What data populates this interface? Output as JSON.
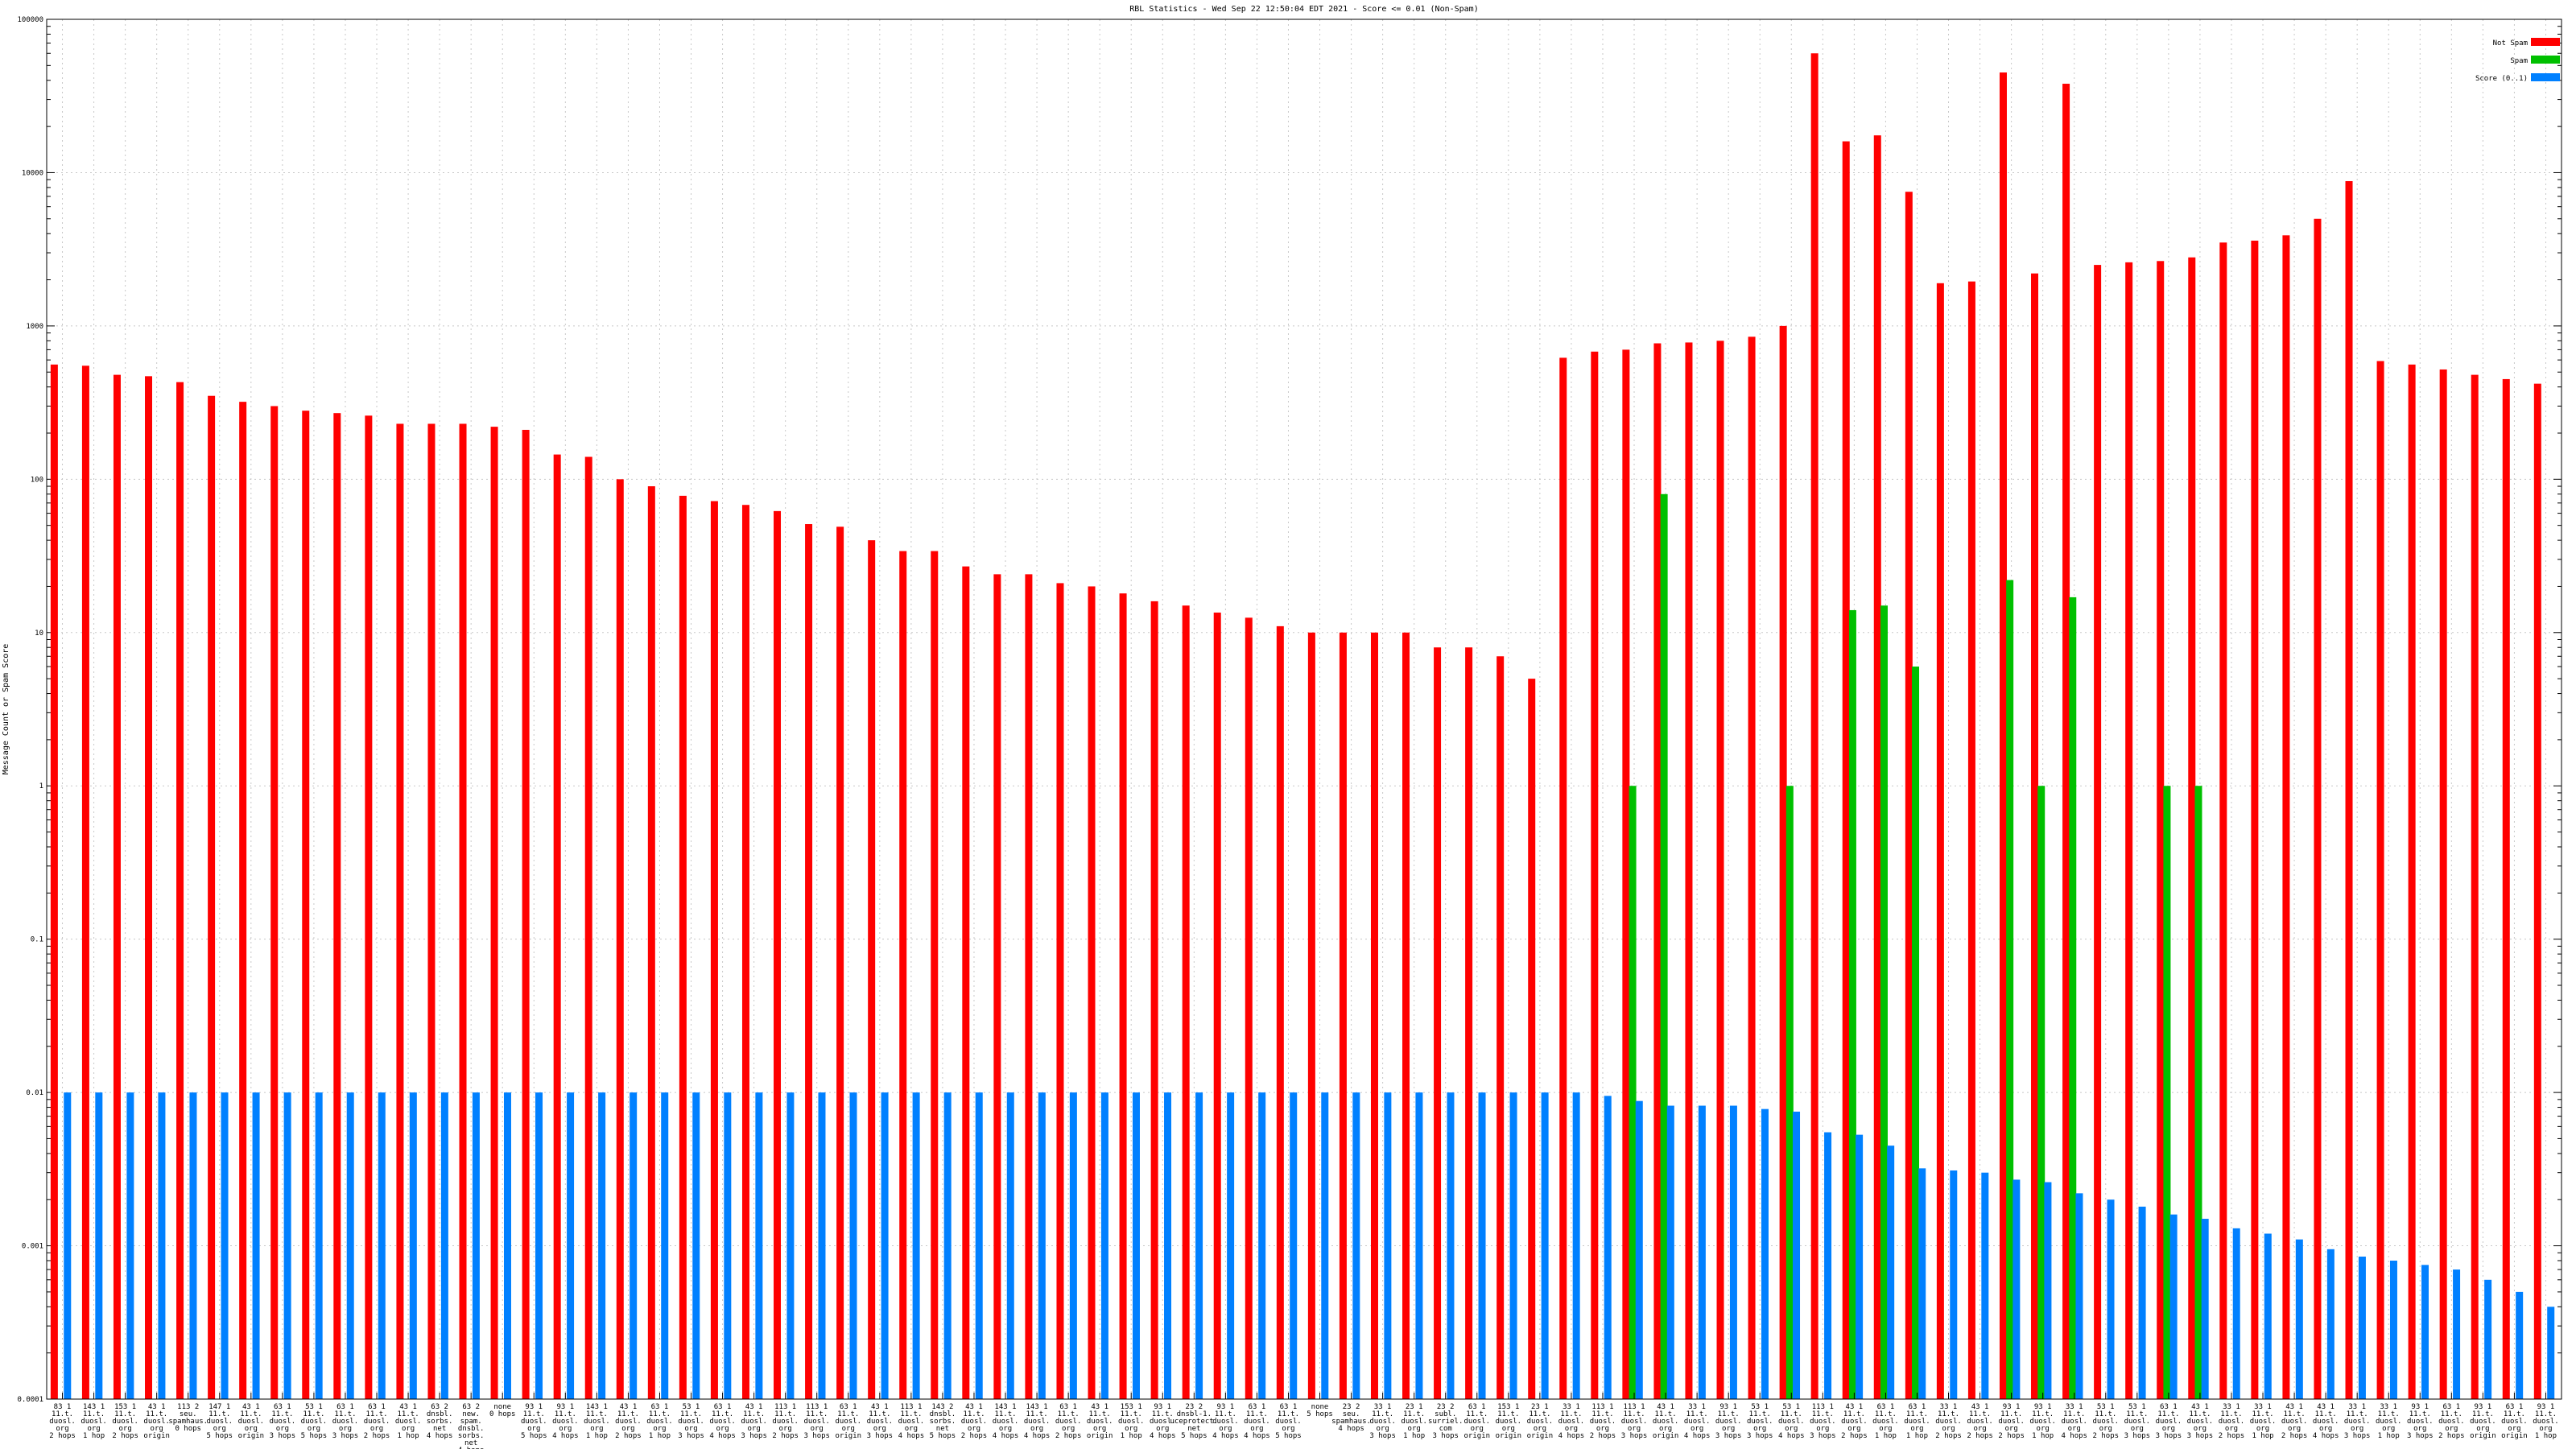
{
  "chart_data": {
    "type": "bar",
    "title": "RBL Statistics - Wed Sep 22 12:50:04 EDT 2021 - Score <= 0.01 (Non-Spam)",
    "xlabel": "",
    "ylabel": "Message Count or Spam Score",
    "yscale": "log",
    "ylim": [
      0.0001,
      100000
    ],
    "yticks": [
      {
        "value": 0.0001,
        "label": "0.0001"
      },
      {
        "value": 0.001,
        "label": "0.001"
      },
      {
        "value": 0.01,
        "label": "0.01"
      },
      {
        "value": 0.1,
        "label": "0.1"
      },
      {
        "value": 1,
        "label": "1"
      },
      {
        "value": 10,
        "label": "10"
      },
      {
        "value": 100,
        "label": "100"
      },
      {
        "value": 1000,
        "label": "1000"
      },
      {
        "value": 10000,
        "label": "10000"
      },
      {
        "value": 100000,
        "label": "100000"
      }
    ],
    "grid": true,
    "legend_position": "top-right",
    "categories": [
      "83 1\n11.t.\nduosl.\norg\n2 hops",
      "143 1\n11.t.\nduosl.\norg\n1 hop",
      "153 1\n11.t.\nduosl.\norg\n2 hops",
      "43 1\n11.t.\nduosl.\norg\norigin",
      "113 2\nseu.\nspamhaus.\n0 hops",
      "147 1\n11.t.\nduosl.\norg\n5 hops",
      "43 1\n11.t.\nduosl.\norg\norigin",
      "63 1\n11.t.\nduosl.\norg\n3 hops",
      "53 1\n11.t.\nduosl.\norg\n5 hops",
      "63 1\n11.t.\nduosl.\norg\n3 hops",
      "63 1\n11.t.\nduosl.\norg\n2 hops",
      "43 1\n11.t.\nduosl.\norg\n1 hop",
      "63 2\ndnsbl.\nsorbs.\nnet\n4 hops",
      "63 2\nnew.\nspam.\ndnsbl.\nsorbs.\nnet\n4 hops",
      "none\n0 hops",
      "93 1\n11.t.\nduosl.\norg\n5 hops",
      "93 1\n11.t.\nduosl.\norg\n4 hops",
      "143 1\n11.t.\nduosl.\norg\n1 hop",
      "43 1\n11.t.\nduosl.\norg\n2 hops",
      "63 1\n11.t.\nduosl.\norg\n1 hop",
      "53 1\n11.t.\nduosl.\norg\n3 hops",
      "63 1\n11.t.\nduosl.\norg\n4 hops",
      "43 1\n11.t.\nduosl.\norg\n3 hops",
      "113 1\n11.t.\nduosl.\norg\n2 hops",
      "113 1\n11.t.\nduosl.\norg\n3 hops",
      "63 1\n11.t.\nduosl.\norg\norigin",
      "43 1\n11.t.\nduosl.\norg\n3 hops",
      "113 1\n11.t.\nduosl.\norg\n4 hops",
      "143 2\ndnsbl.\nsorbs.\nnet\n5 hops",
      "43 1\n11.t.\nduosl.\norg\n2 hops",
      "143 1\n11.t.\nduosl.\norg\n4 hops",
      "143 1\n11.t.\nduosl.\norg\n4 hops",
      "63 1\n11.t.\nduosl.\norg\n2 hops",
      "43 1\n11.t.\nduosl.\norg\norigin",
      "153 1\n11.t.\nduosl.\norg\n1 hop",
      "93 1\n11.t.\nduosl.\norg\n4 hops",
      "23 2\ndnsbl-1.\nuceprotect.\nnet\n5 hops",
      "93 1\n11.t.\nduosl.\norg\n4 hops",
      "63 1\n11.t.\nduosl.\norg\n4 hops",
      "63 1\n11.t.\nduosl.\norg\n5 hops",
      "none\n5 hops",
      "23 2\nseu.\nspamhaus.\n4 hops",
      "33 1\n11.t.\nduosl.\norg\n3 hops",
      "23 1\n11.t.\nduosl.\norg\n1 hop",
      "23 2\nsubl.\nsurriel.\ncom\n3 hops",
      "63 1\n11.t.\nduosl.\norg\norigin",
      "153 1\n11.t.\nduosl.\norg\norigin",
      "23 1\n11.t.\nduosl.\norg\norigin",
      "33 1\n11.t.\nduosl.\norg\n4 hops",
      "113 1\n11.t.\nduosl.\norg\n2 hops",
      "113 1\n11.t.\nduosl.\norg\n3 hops",
      "43 1\n11.t.\nduosl.\norg\norigin",
      "33 1\n11.t.\nduosl.\norg\n4 hops",
      "93 1\n11.t.\nduosl.\norg\n3 hops",
      "53 1\n11.t.\nduosl.\norg\n3 hops",
      "53 1\n11.t.\nduosl.\norg\n4 hops",
      "113 1\n11.t.\nduosl.\norg\n3 hops",
      "43 1\n11.t.\nduosl.\norg\n2 hops",
      "63 1\n11.t.\nduosl.\norg\n1 hop",
      "63 1\n11.t.\nduosl.\norg\n1 hop",
      "33 1\n11.t.\nduosl.\norg\n2 hops",
      "43 1\n11.t.\nduosl.\norg\n2 hops",
      "93 1\n11.t.\nduosl.\norg\n2 hops",
      "93 1\n11.t.\nduosl.\norg\n1 hop",
      "33 1\n11.t.\nduosl.\norg\n4 hops",
      "53 1\n11.t.\nduosl.\norg\n2 hops",
      "53 1\n11.t.\nduosl.\norg\n3 hops",
      "63 1\n11.t.\nduosl.\norg\n3 hops",
      "43 1\n11.t.\nduosl.\norg\n3 hops",
      "33 1\n11.t.\nduosl.\norg\n2 hops",
      "33 1\n11.t.\nduosl.\norg\n1 hop",
      "43 1\n11.t.\nduosl.\norg\n2 hops",
      "43 1\n11.t.\nduosl.\norg\n4 hops",
      "33 1\n11.t.\nduosl.\norg\n3 hops",
      "33 1\n11.t.\nduosl.\norg\n1 hop",
      "93 1\n11.t.\nduosl.\norg\n3 hops",
      "63 1\n11.t.\nduosl.\norg\n2 hops",
      "93 1\n11.t.\nduosl.\norg\norigin",
      "63 1\n11.t.\nduosl.\norg\norigin",
      "93 1\n11.t.\nduosl.\norg\n1 hop"
    ],
    "series": [
      {
        "name": "Not Spam",
        "color": "#ff0000",
        "values": [
          560,
          550,
          480,
          470,
          430,
          350,
          320,
          300,
          280,
          270,
          260,
          230,
          230,
          230,
          220,
          210,
          145,
          140,
          100,
          90,
          78,
          72,
          68,
          62,
          51,
          49,
          40,
          34,
          34,
          27,
          24,
          24,
          21,
          20,
          18,
          16,
          15,
          13.5,
          12.5,
          11,
          10,
          10,
          10,
          10,
          8,
          8,
          7,
          5,
          620,
          680,
          700,
          770,
          780,
          800,
          850,
          1000,
          60000,
          16000,
          17500,
          7500,
          1900,
          1950,
          45000,
          2200,
          38000,
          2500,
          2600,
          2650,
          2800,
          3500,
          3600,
          3900,
          5000,
          8800,
          590,
          560,
          520,
          480,
          450,
          420
        ]
      },
      {
        "name": "Spam",
        "color": "#00c000",
        "values": [
          0,
          0,
          0,
          0,
          0,
          0,
          0,
          0,
          0,
          0,
          0,
          0,
          0,
          0,
          0,
          0,
          0,
          0,
          0,
          0,
          0,
          0,
          0,
          0,
          0,
          0,
          0,
          0,
          0,
          0,
          0,
          0,
          0,
          0,
          0,
          0,
          0,
          0,
          0,
          0,
          0,
          0,
          0,
          0,
          0,
          0,
          0,
          0,
          0,
          0,
          1,
          80,
          0,
          0,
          0,
          1,
          0,
          14,
          15,
          6,
          0,
          0,
          22,
          1,
          17,
          0,
          0,
          1,
          1,
          0,
          0,
          0,
          0,
          0,
          0,
          0,
          0,
          0,
          0,
          0
        ]
      },
      {
        "name": "Score (0..1)",
        "color": "#0080ff",
        "values": [
          0.01,
          0.01,
          0.01,
          0.01,
          0.01,
          0.01,
          0.01,
          0.01,
          0.01,
          0.01,
          0.01,
          0.01,
          0.01,
          0.01,
          0.01,
          0.01,
          0.01,
          0.01,
          0.01,
          0.01,
          0.01,
          0.01,
          0.01,
          0.01,
          0.01,
          0.01,
          0.01,
          0.01,
          0.01,
          0.01,
          0.01,
          0.01,
          0.01,
          0.01,
          0.01,
          0.01,
          0.01,
          0.01,
          0.01,
          0.01,
          0.01,
          0.01,
          0.01,
          0.01,
          0.01,
          0.01,
          0.01,
          0.01,
          0.01,
          0.0095,
          0.0088,
          0.0082,
          0.0082,
          0.0082,
          0.0078,
          0.0075,
          0.0055,
          0.0053,
          0.0045,
          0.0032,
          0.0031,
          0.003,
          0.0027,
          0.0026,
          0.0022,
          0.002,
          0.0018,
          0.0016,
          0.0015,
          0.0013,
          0.0012,
          0.0011,
          0.00095,
          0.00085,
          0.0008,
          0.00075,
          0.0007,
          0.0006,
          0.0005,
          0.0004
        ]
      }
    ]
  }
}
